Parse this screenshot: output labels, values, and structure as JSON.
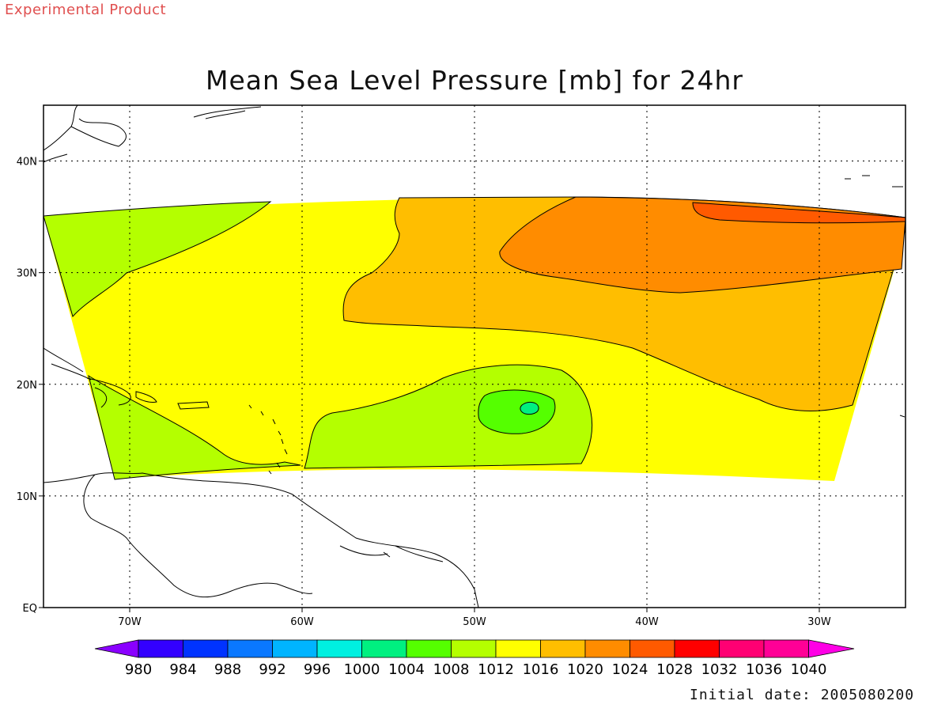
{
  "header": {
    "banner": "Experimental Product",
    "title": "Mean Sea Level Pressure [mb] for 24hr"
  },
  "footer": {
    "initial_date": "Initial date: 2005080200"
  },
  "map": {
    "lon_range": [
      -75,
      -25
    ],
    "lat_range": [
      0,
      45
    ],
    "lon_ticks": [
      {
        "value": -70,
        "label": "70W"
      },
      {
        "value": -60,
        "label": "60W"
      },
      {
        "value": -50,
        "label": "50W"
      },
      {
        "value": -40,
        "label": "40W"
      },
      {
        "value": -30,
        "label": "30W"
      }
    ],
    "lat_ticks": [
      {
        "value": 0,
        "label": "EQ"
      },
      {
        "value": 10,
        "label": "10N"
      },
      {
        "value": 20,
        "label": "20N"
      },
      {
        "value": 30,
        "label": "30N"
      },
      {
        "value": 40,
        "label": "40N"
      }
    ],
    "grid": "dotted"
  },
  "colorbar": {
    "colors": [
      "#8a00ff",
      "#3300ff",
      "#0033ff",
      "#0a78ff",
      "#00b4ff",
      "#00f0e0",
      "#00f080",
      "#55ff00",
      "#b4ff00",
      "#ffff00",
      "#ffbe00",
      "#ff8c00",
      "#ff5a00",
      "#ff0000",
      "#ff0073",
      "#ff0096",
      "#ff00e6"
    ],
    "labels": [
      "980",
      "984",
      "988",
      "992",
      "996",
      "1000",
      "1004",
      "1008",
      "1012",
      "1016",
      "1020",
      "1024",
      "1028",
      "1032",
      "1036",
      "1040"
    ]
  }
}
